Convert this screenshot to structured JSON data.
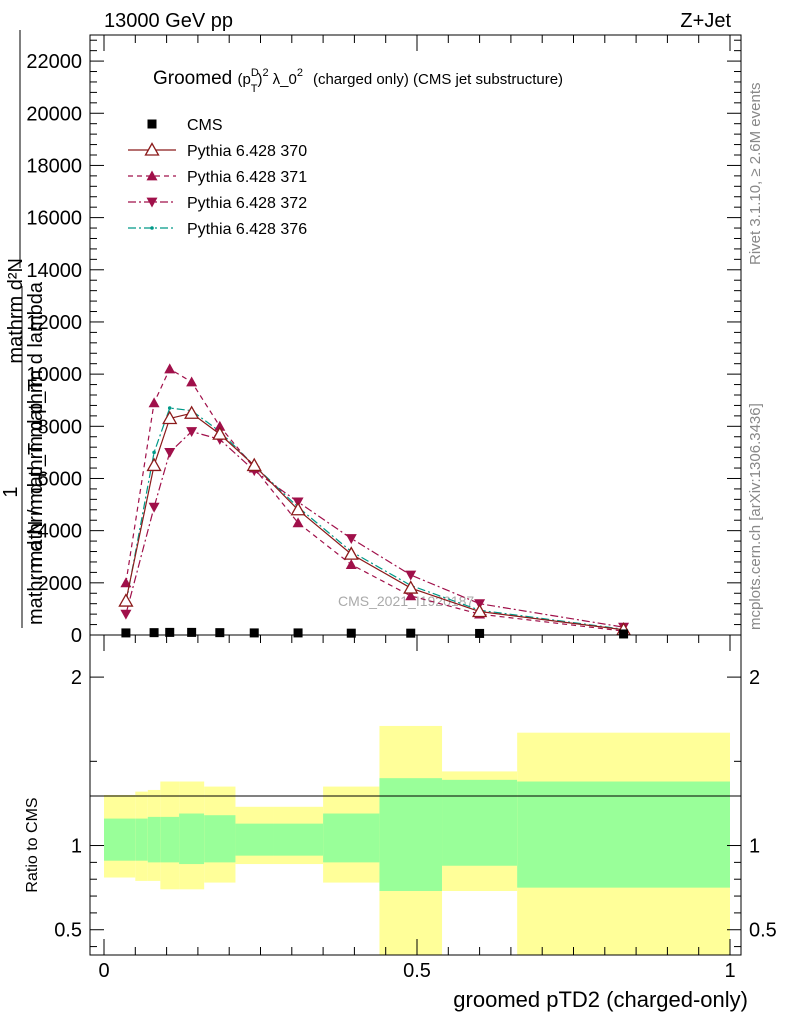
{
  "header": {
    "energy": "13000 GeV pp",
    "process": "Z+Jet",
    "rivet": "Rivet 3.1.10, ≥ 2.6M events",
    "mcplots": "mcplots.cern.ch [arXiv:1306.3436]",
    "watermark": "CMS_2021_I1920187"
  },
  "chart_data": [
    {
      "type": "line",
      "title": "Groomed (p_T^D)^2 λ_0^2 (charged only) (CMS jet substructure)",
      "title_parts": {
        "pre": "Groomed",
        "a": "(p",
        "a_sup": "D",
        "a_sub": "T",
        "b": ")",
        "b_sup": "2",
        "c": "λ_0",
        "c_sup": "2",
        "d": "(charged only) (CMS jet substructure)"
      },
      "ylabel_lines": [
        "mathrm d²N",
        "mathrm d p_T mathrm d lambda",
        "1",
        "mathrm d N / mathrm d p_T"
      ],
      "ylabel": "1 / mathrm d N / mathrm d p_T mathrm d²N / mathrm d p_T mathrm d lambda",
      "xlim": [
        0,
        1
      ],
      "ylim": [
        0,
        23000
      ],
      "yticks": [
        0,
        2000,
        4000,
        6000,
        8000,
        10000,
        12000,
        14000,
        16000,
        18000,
        20000,
        22000
      ],
      "ytick_labels": [
        "0",
        "2000",
        "4000",
        "6000",
        "8000",
        "10000",
        "12000",
        "14000",
        "16000",
        "18000",
        "20000",
        "22000"
      ],
      "x": [
        0.035,
        0.08,
        0.105,
        0.14,
        0.185,
        0.24,
        0.31,
        0.395,
        0.49,
        0.6,
        0.83
      ],
      "series": [
        {
          "name": "CMS",
          "marker": "square",
          "color": "#000000",
          "values": [
            80,
            90,
            100,
            100,
            90,
            80,
            80,
            70,
            70,
            60,
            40
          ]
        },
        {
          "name": "Pythia 6.428 370",
          "marker": "triangle-up-open",
          "dash": "solid",
          "color": "#8b1a1a",
          "values": [
            1300,
            6500,
            8300,
            8500,
            7700,
            6500,
            4800,
            3100,
            1800,
            900,
            200
          ]
        },
        {
          "name": "Pythia 6.428 371",
          "marker": "triangle-up",
          "dash": "dashed",
          "color": "#a0104a",
          "values": [
            2000,
            8900,
            10200,
            9700,
            8000,
            6400,
            4300,
            2700,
            1500,
            800,
            150
          ]
        },
        {
          "name": "Pythia 6.428 372",
          "marker": "triangle-down",
          "dash": "dashdot",
          "color": "#a0104a",
          "values": [
            800,
            4900,
            7000,
            7800,
            7500,
            6300,
            5100,
            3700,
            2300,
            1200,
            300
          ]
        },
        {
          "name": "Pythia 6.428 376",
          "marker": "dot",
          "dash": "dashdot",
          "color": "#009988",
          "values": [
            1200,
            7000,
            8700,
            8600,
            7800,
            6500,
            4900,
            3200,
            1900,
            950,
            220
          ]
        }
      ]
    },
    {
      "type": "area",
      "ylabel": "Ratio to CMS",
      "xlabel": "groomed pTD2 (charged-only)",
      "xlim": [
        0,
        1
      ],
      "ylim": [
        0.35,
        2.25
      ],
      "yticks": [
        0.5,
        1,
        2
      ],
      "ytick_labels": [
        "0.5",
        "1",
        "2"
      ],
      "xticks": [
        0,
        0.5,
        1
      ],
      "xtick_labels": [
        "0",
        "0.5",
        "1"
      ],
      "bin_edges": [
        0,
        0.05,
        0.07,
        0.09,
        0.12,
        0.16,
        0.21,
        0.27,
        0.35,
        0.44,
        0.54,
        0.66,
        1.0
      ],
      "inner_band": {
        "name": "stat",
        "color": "#99ff99",
        "lo": [
          0.91,
          0.91,
          0.9,
          0.9,
          0.89,
          0.9,
          0.94,
          0.94,
          0.9,
          0.73,
          0.88,
          0.75
        ],
        "hi": [
          1.16,
          1.16,
          1.17,
          1.17,
          1.19,
          1.18,
          1.13,
          1.13,
          1.19,
          1.4,
          1.39,
          1.38
        ]
      },
      "outer_band": {
        "name": "total",
        "color": "#ffff99",
        "lo": [
          0.81,
          0.79,
          0.79,
          0.74,
          0.74,
          0.78,
          0.89,
          0.89,
          0.78,
          0.35,
          0.73,
          0.35
        ],
        "hi": [
          1.3,
          1.32,
          1.33,
          1.38,
          1.38,
          1.35,
          1.23,
          1.23,
          1.35,
          1.71,
          1.44,
          1.67
        ]
      },
      "reference_line": 1
    }
  ],
  "colors": {
    "band_inner": "#99ff99",
    "band_outer": "#ffff99",
    "side_text": "#888888"
  }
}
